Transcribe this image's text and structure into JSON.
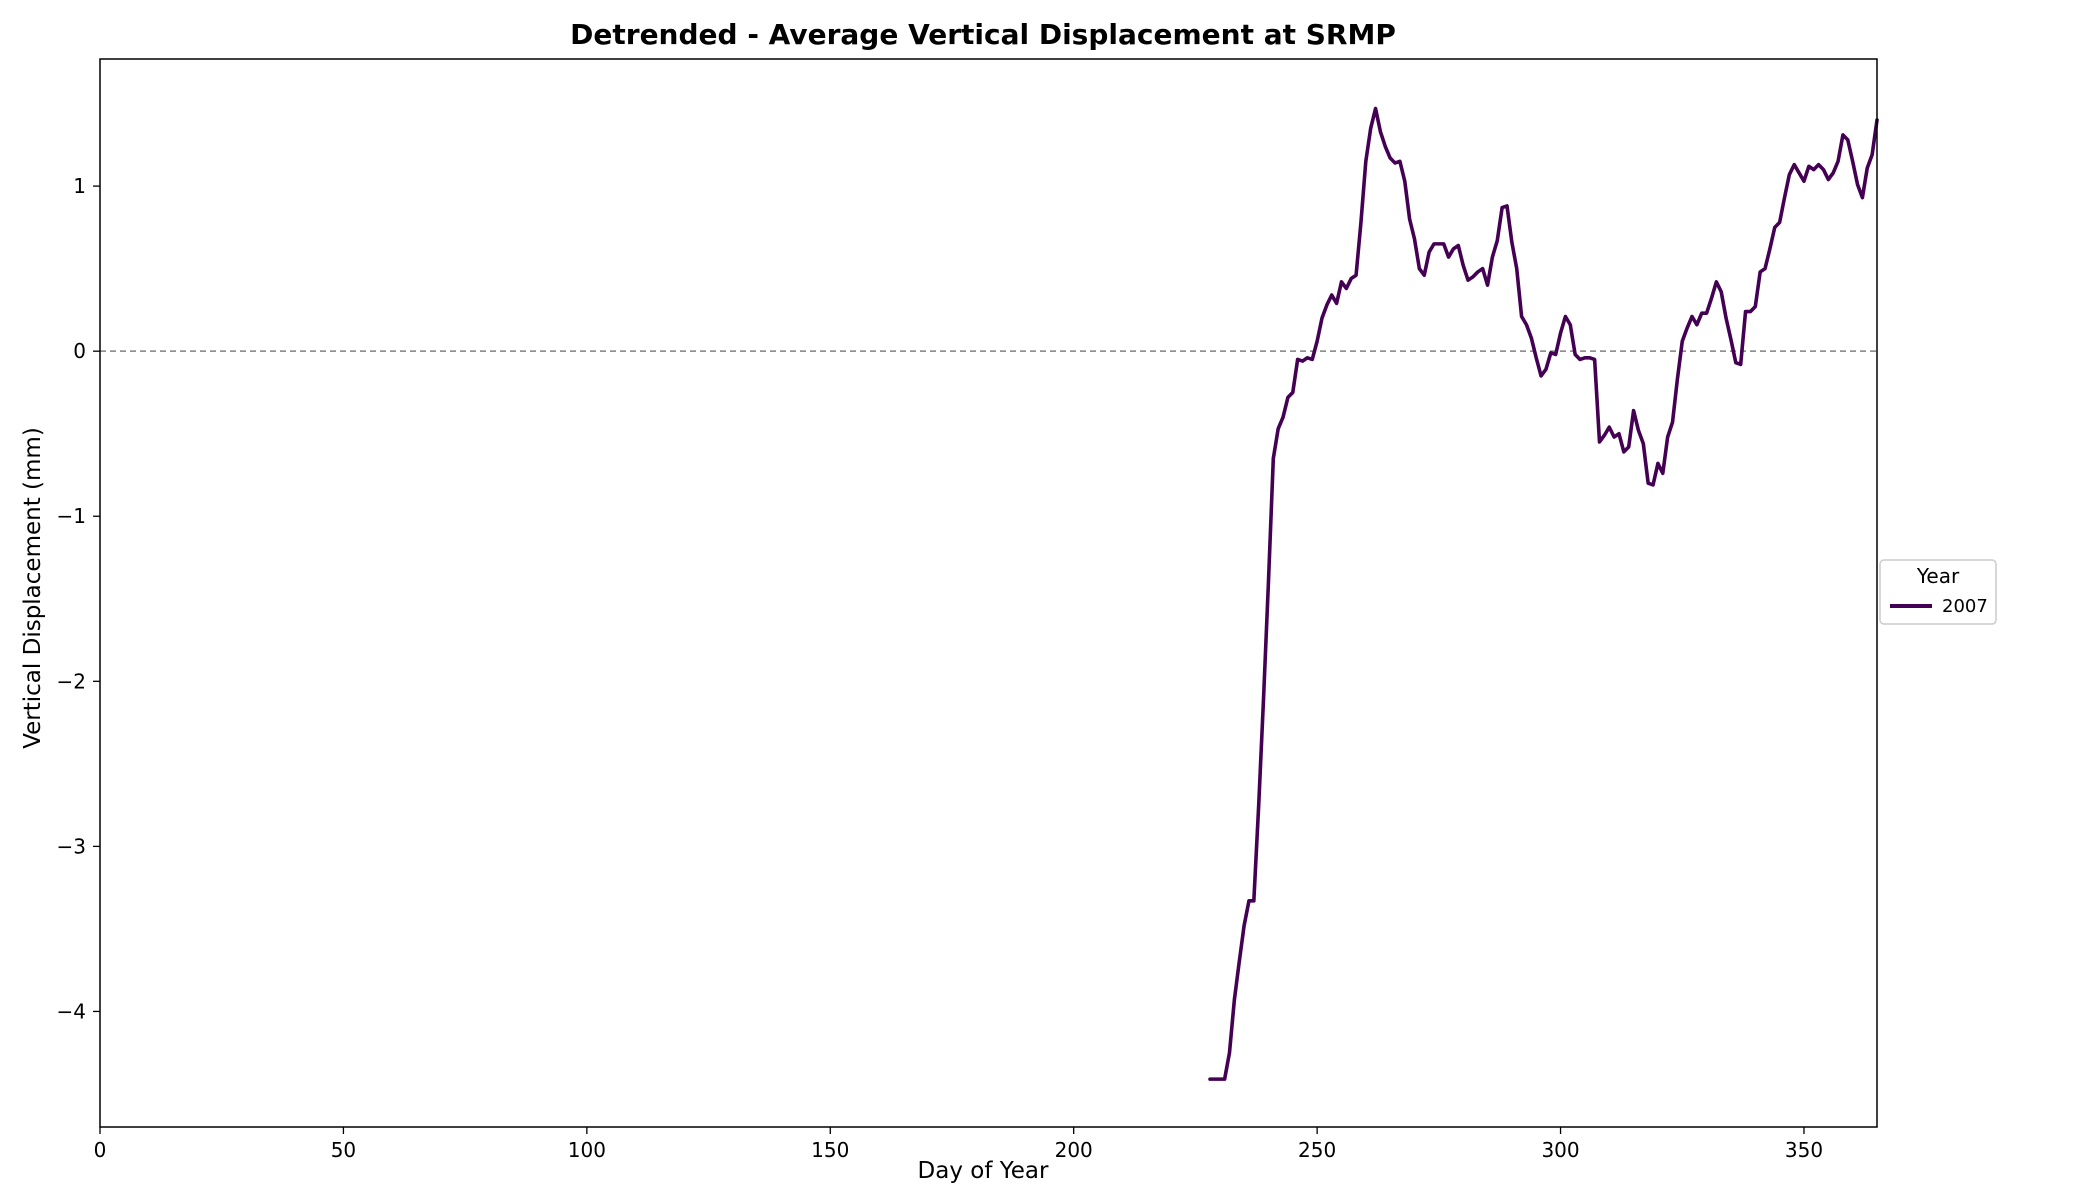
{
  "chart_data": {
    "type": "line",
    "title": "Detrended - Average Vertical Displacement at SRMP",
    "xlabel": "Day of Year",
    "ylabel": "Vertical Displacement  (mm)",
    "xlim": [
      0,
      365
    ],
    "ylim": [
      -4.7,
      1.77
    ],
    "xticks": [
      0,
      50,
      100,
      150,
      200,
      250,
      300,
      350
    ],
    "yticks": [
      -4,
      -3,
      -2,
      -1,
      0,
      1
    ],
    "grid": false,
    "reference_line": {
      "y": 0,
      "style": "dashed",
      "color": "#808080"
    },
    "legend": {
      "title": "Year",
      "placement": "center-right-outside"
    },
    "series": [
      {
        "name": "2007",
        "color": "#440154",
        "x": [
          228,
          229,
          230,
          231,
          232,
          233,
          234,
          235,
          236,
          237,
          238,
          239,
          240,
          241,
          242,
          243,
          244,
          245,
          246,
          247,
          248,
          249,
          250,
          251,
          252,
          253,
          254,
          255,
          256,
          257,
          258,
          259,
          260,
          261,
          262,
          263,
          264,
          265,
          266,
          267,
          268,
          269,
          270,
          271,
          272,
          273,
          274,
          275,
          276,
          277,
          278,
          279,
          280,
          281,
          282,
          283,
          284,
          285,
          286,
          287,
          288,
          289,
          290,
          291,
          292,
          293,
          294,
          295,
          296,
          297,
          298,
          299,
          300,
          301,
          302,
          303,
          304,
          305,
          306,
          307,
          308,
          309,
          310,
          311,
          312,
          313,
          314,
          315,
          316,
          317,
          318,
          319,
          320,
          321,
          322,
          323,
          324,
          325,
          326,
          327,
          328,
          329,
          330,
          331,
          332,
          333,
          334,
          335,
          336,
          337,
          338,
          339,
          340,
          341,
          342,
          343,
          344,
          345,
          346,
          347,
          348,
          349,
          350,
          351,
          352,
          353,
          354,
          355,
          356,
          357,
          358,
          359,
          360,
          361,
          362,
          363,
          364,
          365
        ],
        "y": [
          -4.41,
          -4.41,
          -4.41,
          -4.41,
          -4.25,
          -3.93,
          -3.7,
          -3.48,
          -3.33,
          -3.33,
          -2.75,
          -2.1,
          -1.4,
          -0.65,
          -0.47,
          -0.4,
          -0.28,
          -0.25,
          -0.05,
          -0.06,
          -0.04,
          -0.05,
          0.06,
          0.2,
          0.28,
          0.34,
          0.29,
          0.42,
          0.38,
          0.44,
          0.46,
          0.78,
          1.15,
          1.35,
          1.47,
          1.33,
          1.24,
          1.17,
          1.14,
          1.15,
          1.03,
          0.8,
          0.68,
          0.5,
          0.46,
          0.6,
          0.65,
          0.65,
          0.65,
          0.57,
          0.62,
          0.64,
          0.52,
          0.43,
          0.45,
          0.48,
          0.5,
          0.4,
          0.57,
          0.67,
          0.87,
          0.88,
          0.66,
          0.5,
          0.21,
          0.16,
          0.08,
          -0.04,
          -0.15,
          -0.11,
          -0.01,
          -0.02,
          0.11,
          0.21,
          0.16,
          -0.02,
          -0.05,
          -0.04,
          -0.04,
          -0.05,
          -0.55,
          -0.51,
          -0.46,
          -0.52,
          -0.5,
          -0.61,
          -0.58,
          -0.36,
          -0.48,
          -0.56,
          -0.8,
          -0.81,
          -0.68,
          -0.74,
          -0.52,
          -0.43,
          -0.17,
          0.06,
          0.14,
          0.21,
          0.16,
          0.23,
          0.23,
          0.32,
          0.42,
          0.36,
          0.2,
          0.07,
          -0.07,
          -0.08,
          0.24,
          0.24,
          0.27,
          0.48,
          0.5,
          0.62,
          0.75,
          0.78,
          0.93,
          1.07,
          1.13,
          1.08,
          1.03,
          1.12,
          1.1,
          1.13,
          1.1,
          1.04,
          1.08,
          1.15,
          1.31,
          1.28,
          1.15,
          1.01,
          0.93,
          1.11,
          1.19,
          1.4
        ]
      }
    ]
  }
}
